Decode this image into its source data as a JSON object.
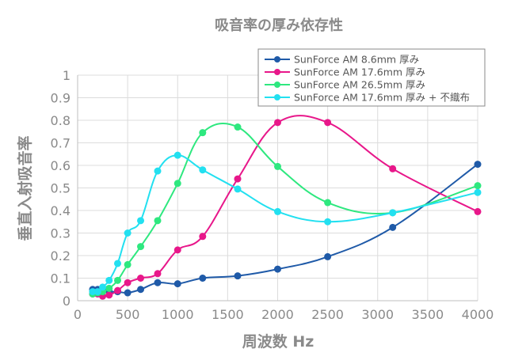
{
  "chart_data": {
    "type": "scatter",
    "title": "吸音率の厚み依存性",
    "xlabel": "周波数 Hz",
    "ylabel": "垂直入射吸音率",
    "xlim": [
      0,
      4000
    ],
    "ylim": [
      0,
      1
    ],
    "xticks": [
      "0",
      "500",
      "1000",
      "1500",
      "2000",
      "2500",
      "3000",
      "3500",
      "4000"
    ],
    "yticks": [
      "0",
      "0.1",
      "0.2",
      "0.3",
      "0.4",
      "0.5",
      "0.6",
      "0.7",
      "0.8",
      "0.9",
      "1"
    ],
    "grid": true,
    "legend_position": "top-right",
    "series": [
      {
        "name": "SunForce AM 8.6mm 厚み",
        "color": "#1f5aa8",
        "points": [
          [
            150,
            0.05
          ],
          [
            200,
            0.05
          ],
          [
            250,
            0.05
          ],
          [
            315,
            0.04
          ],
          [
            400,
            0.04
          ],
          [
            500,
            0.035
          ],
          [
            630,
            0.05
          ],
          [
            800,
            0.08
          ],
          [
            1000,
            0.075
          ],
          [
            1250,
            0.1
          ],
          [
            1600,
            0.11
          ],
          [
            2000,
            0.14
          ],
          [
            2500,
            0.195
          ],
          [
            3150,
            0.325
          ],
          [
            4000,
            0.605
          ]
        ]
      },
      {
        "name": "SunForce AM 17.6mm 厚み",
        "color": "#e8178a",
        "points": [
          [
            150,
            0.03
          ],
          [
            200,
            0.03
          ],
          [
            250,
            0.02
          ],
          [
            315,
            0.025
          ],
          [
            400,
            0.045
          ],
          [
            500,
            0.08
          ],
          [
            630,
            0.1
          ],
          [
            800,
            0.12
          ],
          [
            1000,
            0.225
          ],
          [
            1250,
            0.285
          ],
          [
            1600,
            0.54
          ],
          [
            2000,
            0.79
          ],
          [
            2500,
            0.79
          ],
          [
            3150,
            0.585
          ],
          [
            4000,
            0.395
          ]
        ]
      },
      {
        "name": "SunForce AM 26.5mm 厚み",
        "color": "#2ee87f",
        "points": [
          [
            150,
            0.03
          ],
          [
            200,
            0.035
          ],
          [
            250,
            0.04
          ],
          [
            315,
            0.055
          ],
          [
            400,
            0.09
          ],
          [
            500,
            0.16
          ],
          [
            630,
            0.24
          ],
          [
            800,
            0.355
          ],
          [
            1000,
            0.52
          ],
          [
            1250,
            0.745
          ],
          [
            1600,
            0.77
          ],
          [
            2000,
            0.595
          ],
          [
            2500,
            0.435
          ],
          [
            3150,
            0.39
          ],
          [
            4000,
            0.51
          ]
        ]
      },
      {
        "name": "SunForce AM 17.6mm 厚み + 不織布",
        "color": "#22e0f0",
        "points": [
          [
            150,
            0.04
          ],
          [
            200,
            0.04
          ],
          [
            250,
            0.06
          ],
          [
            315,
            0.09
          ],
          [
            400,
            0.165
          ],
          [
            500,
            0.3
          ],
          [
            630,
            0.355
          ],
          [
            800,
            0.575
          ],
          [
            1000,
            0.645
          ],
          [
            1250,
            0.58
          ],
          [
            1600,
            0.495
          ],
          [
            2000,
            0.395
          ],
          [
            2500,
            0.35
          ],
          [
            3150,
            0.39
          ],
          [
            4000,
            0.48
          ]
        ]
      }
    ]
  }
}
